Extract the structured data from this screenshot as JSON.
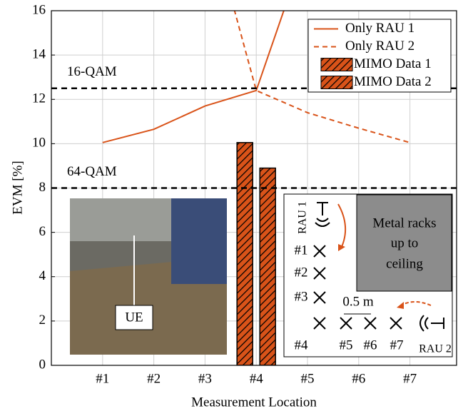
{
  "chart_data": {
    "type": "bar_line",
    "x_label": "Measurement Location",
    "y_label": "EVM [%]",
    "categories": [
      "#1",
      "#2",
      "#3",
      "#4",
      "#5",
      "#6",
      "#7"
    ],
    "ylim": [
      0,
      16
    ],
    "yticks": [
      0,
      2,
      4,
      6,
      8,
      10,
      12,
      14,
      16
    ],
    "grid": true,
    "series": [
      {
        "name": "Only RAU 1",
        "kind": "line",
        "dash": false,
        "color": "#d95319",
        "values": [
          10.05,
          10.65,
          11.7,
          12.4,
          19.1,
          null,
          null
        ]
      },
      {
        "name": "Only RAU 2",
        "kind": "line",
        "dash": true,
        "color": "#d95319",
        "values": [
          null,
          null,
          20.9,
          12.4,
          11.4,
          10.7,
          10.05
        ]
      },
      {
        "name": "MIMO Data 1",
        "kind": "bar",
        "color": "#d95319",
        "values": [
          null,
          null,
          null,
          10.05,
          null,
          null,
          null
        ]
      },
      {
        "name": "MIMO Data 2",
        "kind": "bar",
        "color": "#d95319",
        "values": [
          null,
          null,
          null,
          8.9,
          null,
          null,
          null
        ]
      }
    ],
    "thresholds": [
      {
        "label": "16-QAM",
        "value": 12.5
      },
      {
        "label": "64-QAM",
        "value": 8
      }
    ],
    "legend": "upper right",
    "inset": {
      "photo_label": "UE",
      "rau1": "RAU 1",
      "rau2": "RAU 2",
      "positions": [
        "#1",
        "#2",
        "#3",
        "#4",
        "#5",
        "#6",
        "#7"
      ],
      "spacing": "0.5 m",
      "racks": [
        "Metal racks",
        "up to",
        "ceiling"
      ]
    }
  }
}
